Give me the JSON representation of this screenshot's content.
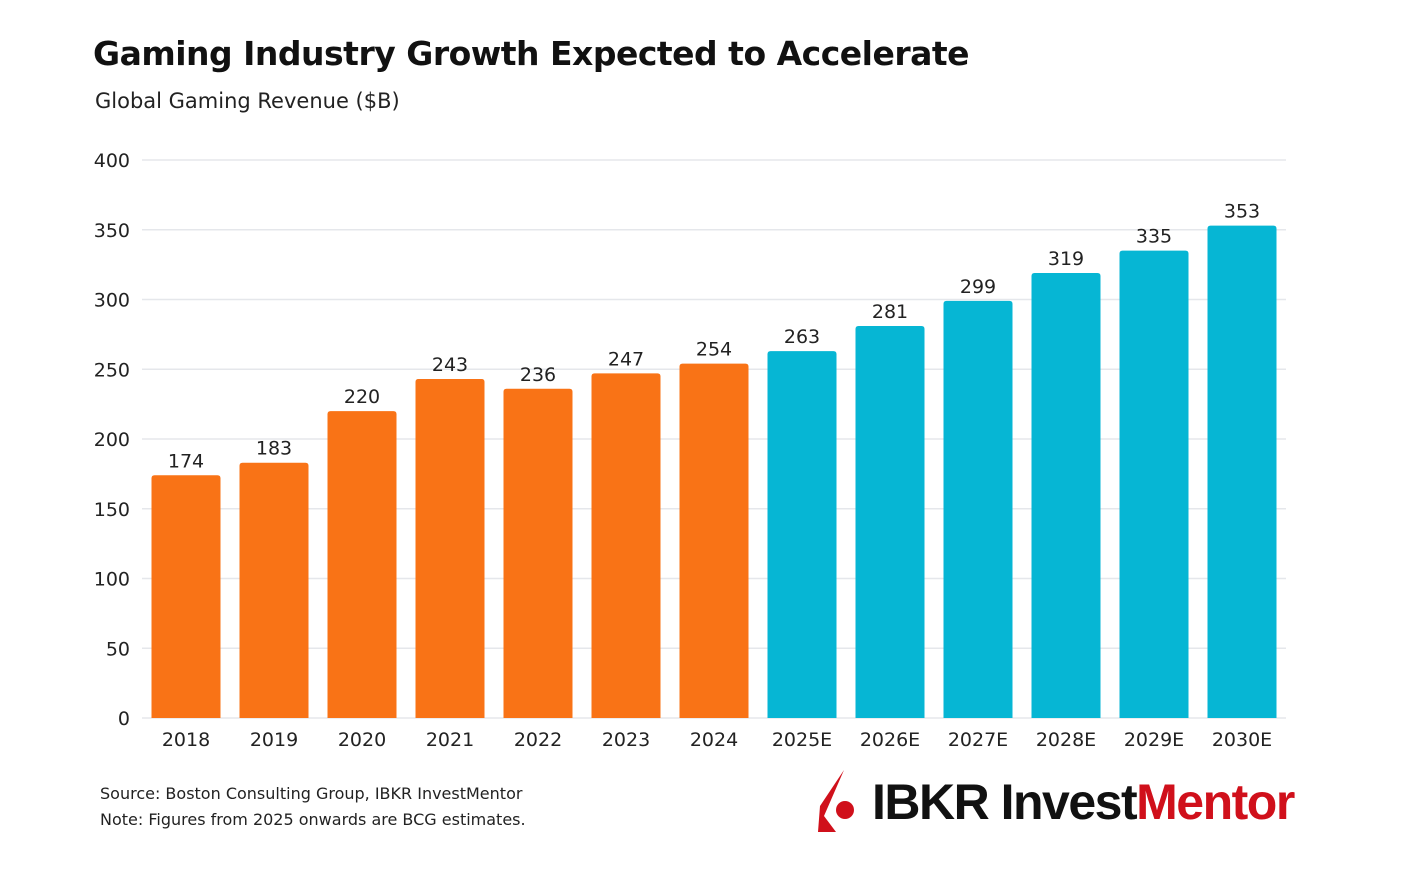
{
  "title": "Gaming Industry Growth Expected to Accelerate",
  "subtitle": "Global Gaming Revenue ($B)",
  "notes": {
    "source": "Source: Boston Consulting Group, IBKR InvestMentor",
    "note": "Note: Figures from 2025 onwards are BCG estimates."
  },
  "logo": {
    "part1": "IBKR Invest",
    "part2": "Mentor"
  },
  "colors": {
    "actual": "#f97316",
    "estimate": "#06b6d4",
    "grid": "#e5e7eb",
    "logo_red": "#d0101b"
  },
  "chart_data": {
    "type": "bar",
    "categories": [
      "2018",
      "2019",
      "2020",
      "2021",
      "2022",
      "2023",
      "2024",
      "2025E",
      "2026E",
      "2027E",
      "2028E",
      "2029E",
      "2030E"
    ],
    "values": [
      174,
      183,
      220,
      243,
      236,
      247,
      254,
      263,
      281,
      299,
      319,
      335,
      353
    ],
    "estimate": [
      false,
      false,
      false,
      false,
      false,
      false,
      false,
      true,
      true,
      true,
      true,
      true,
      true
    ],
    "ylim": [
      0,
      400
    ],
    "yticks": [
      0,
      50,
      100,
      150,
      200,
      250,
      300,
      350,
      400
    ],
    "grid": true,
    "data_labels": true
  }
}
